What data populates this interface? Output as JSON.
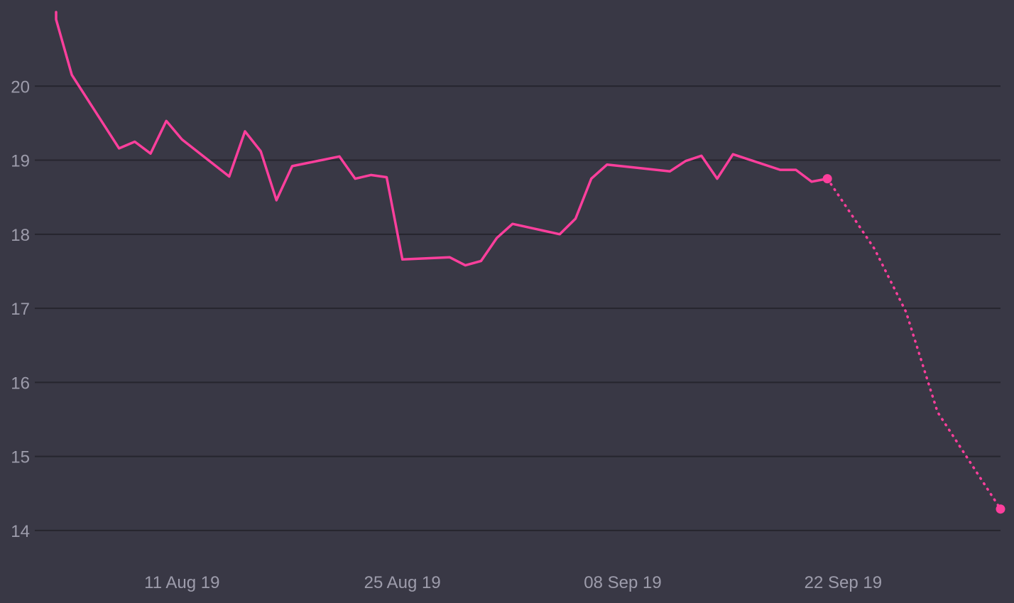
{
  "colors": {
    "background": "#393845",
    "series": "#fc3f9c",
    "gridline": "#26252e",
    "tick_text": "#9d9cab"
  },
  "chart_data": {
    "type": "line",
    "title": "",
    "xlabel": "",
    "ylabel": "",
    "grid": true,
    "legend": "none",
    "xlim": [
      "2019-08-03",
      "2019-10-02"
    ],
    "ylim": [
      13.75,
      21
    ],
    "x_ticks": [
      "2019-08-11",
      "2019-08-25",
      "2019-09-08",
      "2019-09-22"
    ],
    "x_tick_labels": [
      "11 Aug 19",
      "25 Aug 19",
      "08 Sep 19",
      "22 Sep 19"
    ],
    "y_ticks": [
      14,
      15,
      16,
      17,
      18,
      19,
      20
    ],
    "y_tick_labels": [
      "14",
      "15",
      "16",
      "17",
      "18",
      "19",
      "20"
    ],
    "series": [
      {
        "style": "solid",
        "points": [
          [
            "2019-08-03",
            21.0
          ],
          [
            "2019-08-03",
            20.9
          ],
          [
            "2019-08-04",
            20.15
          ],
          [
            "2019-08-07",
            19.16
          ],
          [
            "2019-08-08",
            19.25
          ],
          [
            "2019-08-09",
            19.09
          ],
          [
            "2019-08-10",
            19.53
          ],
          [
            "2019-08-11",
            19.28
          ],
          [
            "2019-08-14",
            18.78
          ],
          [
            "2019-08-15",
            19.39
          ],
          [
            "2019-08-16",
            19.12
          ],
          [
            "2019-08-17",
            18.46
          ],
          [
            "2019-08-18",
            18.92
          ],
          [
            "2019-08-21",
            19.05
          ],
          [
            "2019-08-22",
            18.75
          ],
          [
            "2019-08-23",
            18.8
          ],
          [
            "2019-08-24",
            18.77
          ],
          [
            "2019-08-25",
            17.66
          ],
          [
            "2019-08-28",
            17.69
          ],
          [
            "2019-08-29",
            17.58
          ],
          [
            "2019-08-30",
            17.64
          ],
          [
            "2019-08-31",
            17.95
          ],
          [
            "2019-09-01",
            18.14
          ],
          [
            "2019-09-04",
            18.0
          ],
          [
            "2019-09-05",
            18.21
          ],
          [
            "2019-09-06",
            18.75
          ],
          [
            "2019-09-07",
            18.94
          ],
          [
            "2019-09-11",
            18.85
          ],
          [
            "2019-09-12",
            18.99
          ],
          [
            "2019-09-13",
            19.06
          ],
          [
            "2019-09-14",
            18.75
          ],
          [
            "2019-09-15",
            19.08
          ],
          [
            "2019-09-18",
            18.87
          ],
          [
            "2019-09-19",
            18.87
          ],
          [
            "2019-09-20",
            18.71
          ],
          [
            "2019-09-21",
            18.75
          ]
        ]
      },
      {
        "style": "dotted",
        "points": [
          [
            "2019-09-21",
            18.75
          ],
          [
            "2019-09-24",
            17.8
          ],
          [
            "2019-09-26",
            16.95
          ],
          [
            "2019-09-28",
            15.6
          ],
          [
            "2019-10-02",
            14.29
          ]
        ]
      }
    ]
  }
}
